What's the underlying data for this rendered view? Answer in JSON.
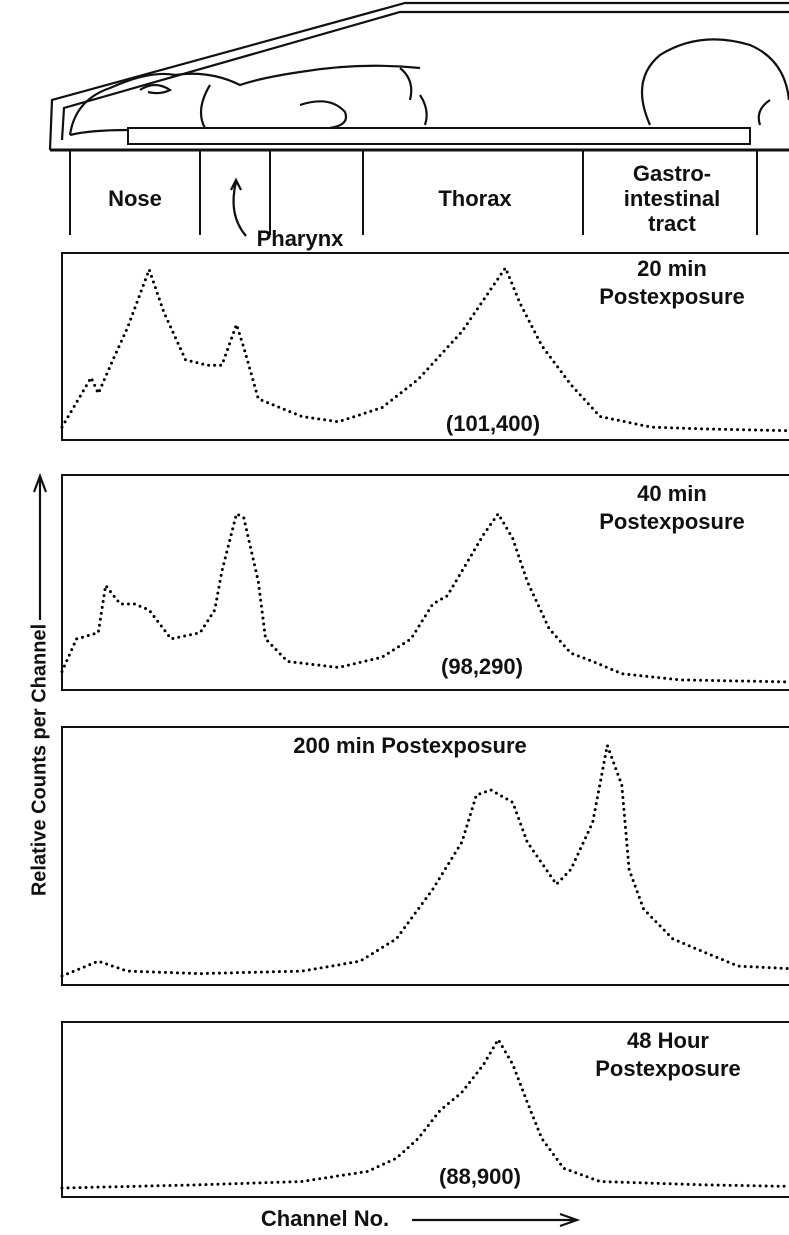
{
  "figure": {
    "regions": [
      "Nose",
      "Pharynx",
      "Thorax",
      [
        "Gastro-",
        "intestinal",
        "tract"
      ]
    ],
    "y_label": "Relative Counts per Channel",
    "x_label": "Channel No."
  },
  "chart_data": [
    {
      "type": "line",
      "title": [
        "20 min",
        "Postexposure"
      ],
      "annotation": "(101,400)",
      "color": "#000000",
      "xlim": [
        0,
        100
      ],
      "ylim": [
        0,
        100
      ],
      "x": [
        0,
        4,
        5,
        7,
        9,
        12,
        14,
        17,
        20,
        22,
        24,
        25,
        27,
        33,
        38,
        44,
        49,
        55,
        59,
        61,
        63,
        66,
        70,
        74,
        81,
        88,
        100
      ],
      "values": [
        5,
        33,
        24,
        43,
        61,
        94,
        70,
        43,
        40,
        40,
        63,
        50,
        21,
        11,
        8,
        16,
        32,
        59,
        83,
        95,
        75,
        51,
        29,
        11,
        5,
        4,
        3
      ]
    },
    {
      "type": "line",
      "title": [
        "40 min",
        "Postexposure"
      ],
      "annotation": "(98,290)",
      "color": "#000000",
      "xlim": [
        0,
        100
      ],
      "ylim": [
        0,
        100
      ],
      "x": [
        0,
        2,
        5,
        6,
        8,
        10,
        12,
        15,
        19,
        21,
        22,
        24,
        25,
        27,
        28,
        31,
        38,
        44,
        48,
        51,
        53,
        55,
        58,
        60,
        62,
        64,
        67,
        70,
        73,
        77,
        85,
        100
      ],
      "values": [
        7,
        23,
        26,
        49,
        40,
        40,
        37,
        23,
        26,
        37,
        56,
        84,
        82,
        51,
        23,
        12,
        9,
        14,
        23,
        40,
        44,
        56,
        74,
        84,
        72,
        51,
        28,
        16,
        12,
        6,
        3,
        2
      ]
    },
    {
      "type": "line",
      "title": [
        "200 min  Postexposure"
      ],
      "color": "#000000",
      "xlim": [
        0,
        100
      ],
      "ylim": [
        0,
        100
      ],
      "x": [
        0,
        5,
        9,
        19,
        33,
        41,
        46,
        51,
        55,
        57,
        59,
        62,
        64,
        68,
        70,
        73,
        75,
        77,
        78,
        80,
        84,
        88,
        93,
        100
      ],
      "values": [
        2,
        8,
        4,
        3,
        4,
        8,
        17,
        37,
        56,
        75,
        77,
        72,
        56,
        39,
        45,
        64,
        95,
        79,
        45,
        29,
        17,
        12,
        6,
        5
      ]
    },
    {
      "type": "line",
      "title": [
        "48 Hour",
        "Postexposure"
      ],
      "annotation": "(88,900)",
      "color": "#000000",
      "xlim": [
        0,
        100
      ],
      "ylim": [
        0,
        100
      ],
      "x": [
        0,
        19,
        33,
        42,
        46,
        49,
        52,
        55,
        58,
        60,
        62,
        64,
        66,
        69,
        74,
        88,
        100
      ],
      "values": [
        3,
        5,
        7,
        13,
        21,
        33,
        50,
        61,
        78,
        93,
        78,
        55,
        33,
        15,
        7,
        5,
        4
      ]
    }
  ]
}
